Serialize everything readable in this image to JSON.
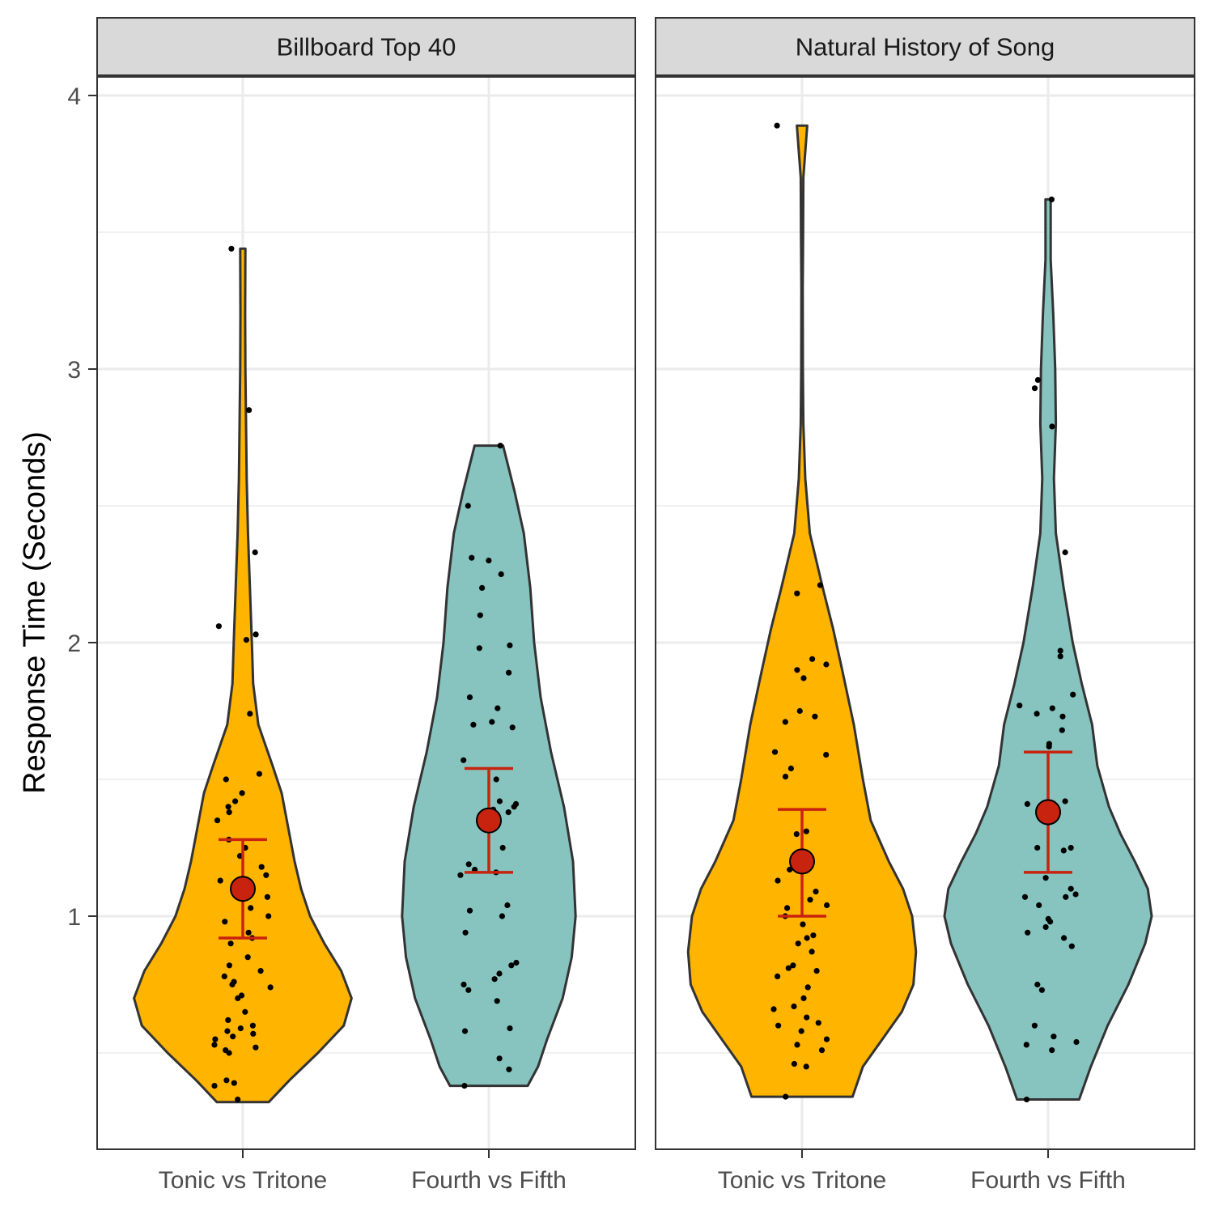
{
  "chart_data": {
    "type": "violin",
    "ylabel": "Response Time (Seconds)",
    "xlabel": "",
    "ylim": [
      0.15,
      4.07
    ],
    "y_ticks": [
      1,
      2,
      3,
      4
    ],
    "grid": true,
    "categories": [
      "Tonic vs Tritone",
      "Fourth vs Fifth"
    ],
    "colors": {
      "Tonic vs Tritone": "#FFB400",
      "Fourth vs Fifth": "#87C4BF",
      "summary": "#C8230F",
      "outline": "#333333"
    },
    "facets": [
      {
        "title": "Billboard Top 40",
        "groups": [
          {
            "category": "Tonic vs Tritone",
            "mean": 1.1,
            "ci_low": 0.92,
            "ci_high": 1.28,
            "points": [
              0.33,
              0.38,
              0.39,
              0.4,
              0.5,
              0.51,
              0.52,
              0.53,
              0.55,
              0.56,
              0.57,
              0.58,
              0.59,
              0.6,
              0.62,
              0.65,
              0.7,
              0.71,
              0.74,
              0.75,
              0.76,
              0.78,
              0.8,
              0.82,
              0.85,
              0.9,
              0.92,
              0.94,
              0.98,
              1.0,
              1.03,
              1.07,
              1.1,
              1.13,
              1.15,
              1.18,
              1.22,
              1.25,
              1.28,
              1.35,
              1.38,
              1.4,
              1.42,
              1.45,
              1.5,
              1.52,
              1.74,
              2.01,
              2.03,
              2.06,
              2.33,
              2.85,
              3.44
            ],
            "violin": [
              [
                0.32,
                0.2
              ],
              [
                0.4,
                0.36
              ],
              [
                0.5,
                0.58
              ],
              [
                0.6,
                0.78
              ],
              [
                0.7,
                0.84
              ],
              [
                0.8,
                0.76
              ],
              [
                0.9,
                0.63
              ],
              [
                1.0,
                0.52
              ],
              [
                1.1,
                0.45
              ],
              [
                1.2,
                0.4
              ],
              [
                1.3,
                0.36
              ],
              [
                1.45,
                0.3
              ],
              [
                1.55,
                0.23
              ],
              [
                1.7,
                0.12
              ],
              [
                1.85,
                0.08
              ],
              [
                2.0,
                0.07
              ],
              [
                2.2,
                0.055
              ],
              [
                2.4,
                0.04
              ],
              [
                2.6,
                0.03
              ],
              [
                2.8,
                0.025
              ],
              [
                3.0,
                0.02
              ],
              [
                3.2,
                0.018
              ],
              [
                3.44,
                0.02
              ]
            ]
          },
          {
            "category": "Fourth vs Fifth",
            "mean": 1.35,
            "ci_low": 1.16,
            "ci_high": 1.54,
            "points": [
              0.38,
              0.44,
              0.48,
              0.58,
              0.59,
              0.69,
              0.73,
              0.75,
              0.77,
              0.79,
              0.82,
              0.83,
              0.94,
              1.0,
              1.02,
              1.04,
              1.15,
              1.16,
              1.17,
              1.19,
              1.25,
              1.38,
              1.39,
              1.4,
              1.41,
              1.42,
              1.5,
              1.57,
              1.69,
              1.7,
              1.71,
              1.76,
              1.8,
              1.89,
              1.98,
              1.99,
              2.1,
              2.2,
              2.25,
              2.3,
              2.31,
              2.5,
              2.72
            ],
            "violin": [
              [
                0.38,
                0.3
              ],
              [
                0.45,
                0.38
              ],
              [
                0.55,
                0.45
              ],
              [
                0.7,
                0.57
              ],
              [
                0.85,
                0.64
              ],
              [
                1.0,
                0.67
              ],
              [
                1.2,
                0.65
              ],
              [
                1.4,
                0.58
              ],
              [
                1.6,
                0.48
              ],
              [
                1.8,
                0.4
              ],
              [
                2.0,
                0.35
              ],
              [
                2.2,
                0.32
              ],
              [
                2.4,
                0.27
              ],
              [
                2.55,
                0.2
              ],
              [
                2.72,
                0.11
              ]
            ]
          }
        ]
      },
      {
        "title": "Natural History of Song",
        "groups": [
          {
            "category": "Tonic vs Tritone",
            "mean": 1.2,
            "ci_low": 1.0,
            "ci_high": 1.39,
            "points": [
              0.34,
              0.45,
              0.46,
              0.51,
              0.53,
              0.55,
              0.58,
              0.6,
              0.61,
              0.63,
              0.66,
              0.67,
              0.7,
              0.74,
              0.78,
              0.8,
              0.81,
              0.82,
              0.87,
              0.9,
              0.92,
              0.93,
              0.97,
              1.0,
              1.03,
              1.04,
              1.06,
              1.09,
              1.13,
              1.17,
              1.18,
              1.3,
              1.31,
              1.51,
              1.54,
              1.59,
              1.6,
              1.71,
              1.73,
              1.75,
              1.87,
              1.9,
              1.92,
              1.94,
              2.18,
              2.21,
              3.89
            ],
            "violin": [
              [
                0.34,
                0.39
              ],
              [
                0.45,
                0.47
              ],
              [
                0.55,
                0.62
              ],
              [
                0.65,
                0.77
              ],
              [
                0.75,
                0.86
              ],
              [
                0.87,
                0.88
              ],
              [
                1.0,
                0.85
              ],
              [
                1.1,
                0.78
              ],
              [
                1.2,
                0.67
              ],
              [
                1.35,
                0.53
              ],
              [
                1.5,
                0.47
              ],
              [
                1.7,
                0.4
              ],
              [
                1.9,
                0.31
              ],
              [
                2.05,
                0.24
              ],
              [
                2.2,
                0.16
              ],
              [
                2.4,
                0.06
              ],
              [
                2.6,
                0.025
              ],
              [
                2.8,
                0.01
              ],
              [
                3.0,
                0.006
              ],
              [
                3.3,
                0.005
              ],
              [
                3.5,
                0.008
              ],
              [
                3.7,
                0.01
              ],
              [
                3.89,
                0.04
              ]
            ]
          },
          {
            "category": "Fourth vs Fifth",
            "mean": 1.38,
            "ci_low": 1.16,
            "ci_high": 1.6,
            "points": [
              0.33,
              0.51,
              0.53,
              0.54,
              0.56,
              0.6,
              0.73,
              0.75,
              0.89,
              0.92,
              0.94,
              0.96,
              0.98,
              0.99,
              1.04,
              1.07,
              1.07,
              1.08,
              1.1,
              1.14,
              1.24,
              1.25,
              1.25,
              1.41,
              1.42,
              1.62,
              1.63,
              1.68,
              1.73,
              1.74,
              1.76,
              1.77,
              1.81,
              1.95,
              1.97,
              2.33,
              2.79,
              2.93,
              2.96,
              3.62
            ],
            "violin": [
              [
                0.33,
                0.24
              ],
              [
                0.45,
                0.33
              ],
              [
                0.6,
                0.46
              ],
              [
                0.75,
                0.62
              ],
              [
                0.9,
                0.75
              ],
              [
                1.0,
                0.8
              ],
              [
                1.1,
                0.77
              ],
              [
                1.2,
                0.67
              ],
              [
                1.3,
                0.56
              ],
              [
                1.4,
                0.47
              ],
              [
                1.55,
                0.38
              ],
              [
                1.7,
                0.34
              ],
              [
                1.85,
                0.26
              ],
              [
                2.0,
                0.19
              ],
              [
                2.2,
                0.12
              ],
              [
                2.4,
                0.06
              ],
              [
                2.6,
                0.045
              ],
              [
                2.8,
                0.06
              ],
              [
                3.0,
                0.055
              ],
              [
                3.2,
                0.04
              ],
              [
                3.4,
                0.02
              ],
              [
                3.62,
                0.02
              ]
            ]
          }
        ]
      }
    ]
  }
}
